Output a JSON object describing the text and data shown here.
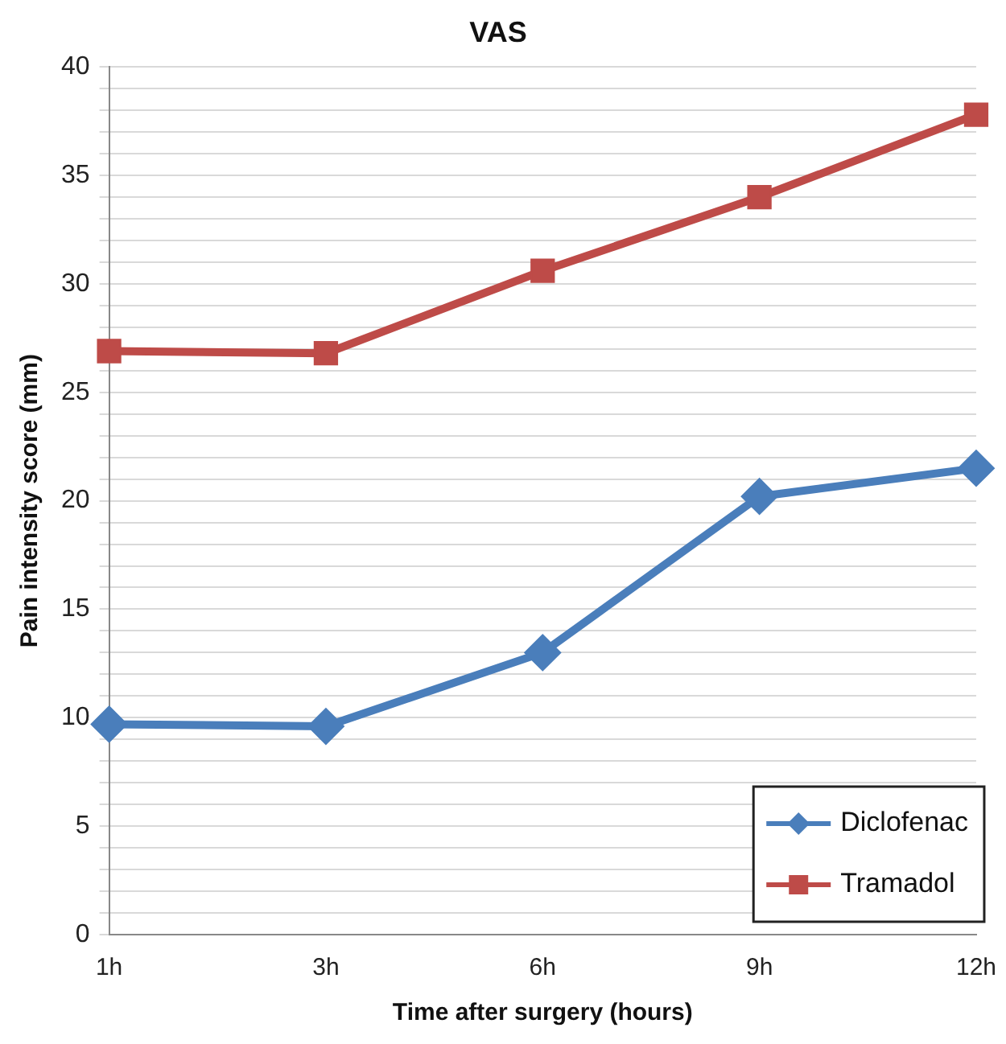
{
  "chart_data": {
    "type": "line",
    "title": "VAS",
    "xlabel": "Time after surgery (hours)",
    "ylabel": "Pain intensity score (mm)",
    "categories": [
      "1h",
      "3h",
      "6h",
      "9h",
      "12h"
    ],
    "series": [
      {
        "name": "Diclofenac",
        "color": "#4a7ebb",
        "marker": "diamond",
        "values": [
          9.7,
          9.6,
          13.0,
          20.2,
          21.5
        ]
      },
      {
        "name": "Tramadol",
        "color": "#be4b48",
        "marker": "square",
        "values": [
          26.9,
          26.8,
          30.6,
          34.0,
          37.8
        ]
      }
    ],
    "ylim": [
      0,
      40
    ],
    "yticks": [
      0,
      {
        "value": 1,
        "label": null
      },
      {
        "value": 2,
        "label": null
      },
      {
        "value": 3,
        "label": null
      },
      {
        "value": 4,
        "label": null
      },
      5,
      {
        "value": 6,
        "label": null
      },
      {
        "value": 7,
        "label": null
      },
      {
        "value": 8,
        "label": null
      },
      {
        "value": 9,
        "label": null
      },
      10,
      {
        "value": 11,
        "label": null
      },
      {
        "value": 12,
        "label": null
      },
      {
        "value": 13,
        "label": null
      },
      {
        "value": 14,
        "label": null
      },
      15,
      {
        "value": 16,
        "label": null
      },
      {
        "value": 17,
        "label": null
      },
      {
        "value": 18,
        "label": null
      },
      {
        "value": 19,
        "label": null
      },
      20,
      {
        "value": 21,
        "label": null
      },
      {
        "value": 22,
        "label": null
      },
      {
        "value": 23,
        "label": null
      },
      {
        "value": 24,
        "label": null
      },
      25,
      {
        "value": 26,
        "label": null
      },
      {
        "value": 27,
        "label": null
      },
      {
        "value": 28,
        "label": null
      },
      {
        "value": 29,
        "label": null
      },
      30,
      {
        "value": 31,
        "label": null
      },
      {
        "value": 32,
        "label": null
      },
      {
        "value": 33,
        "label": null
      },
      {
        "value": 34,
        "label": null
      },
      35,
      {
        "value": 36,
        "label": null
      },
      {
        "value": 37,
        "label": null
      },
      {
        "value": 38,
        "label": null
      },
      {
        "value": 39,
        "label": null
      },
      40
    ],
    "grid": "y",
    "legend": "bottom right",
    "line_style": "solid"
  }
}
